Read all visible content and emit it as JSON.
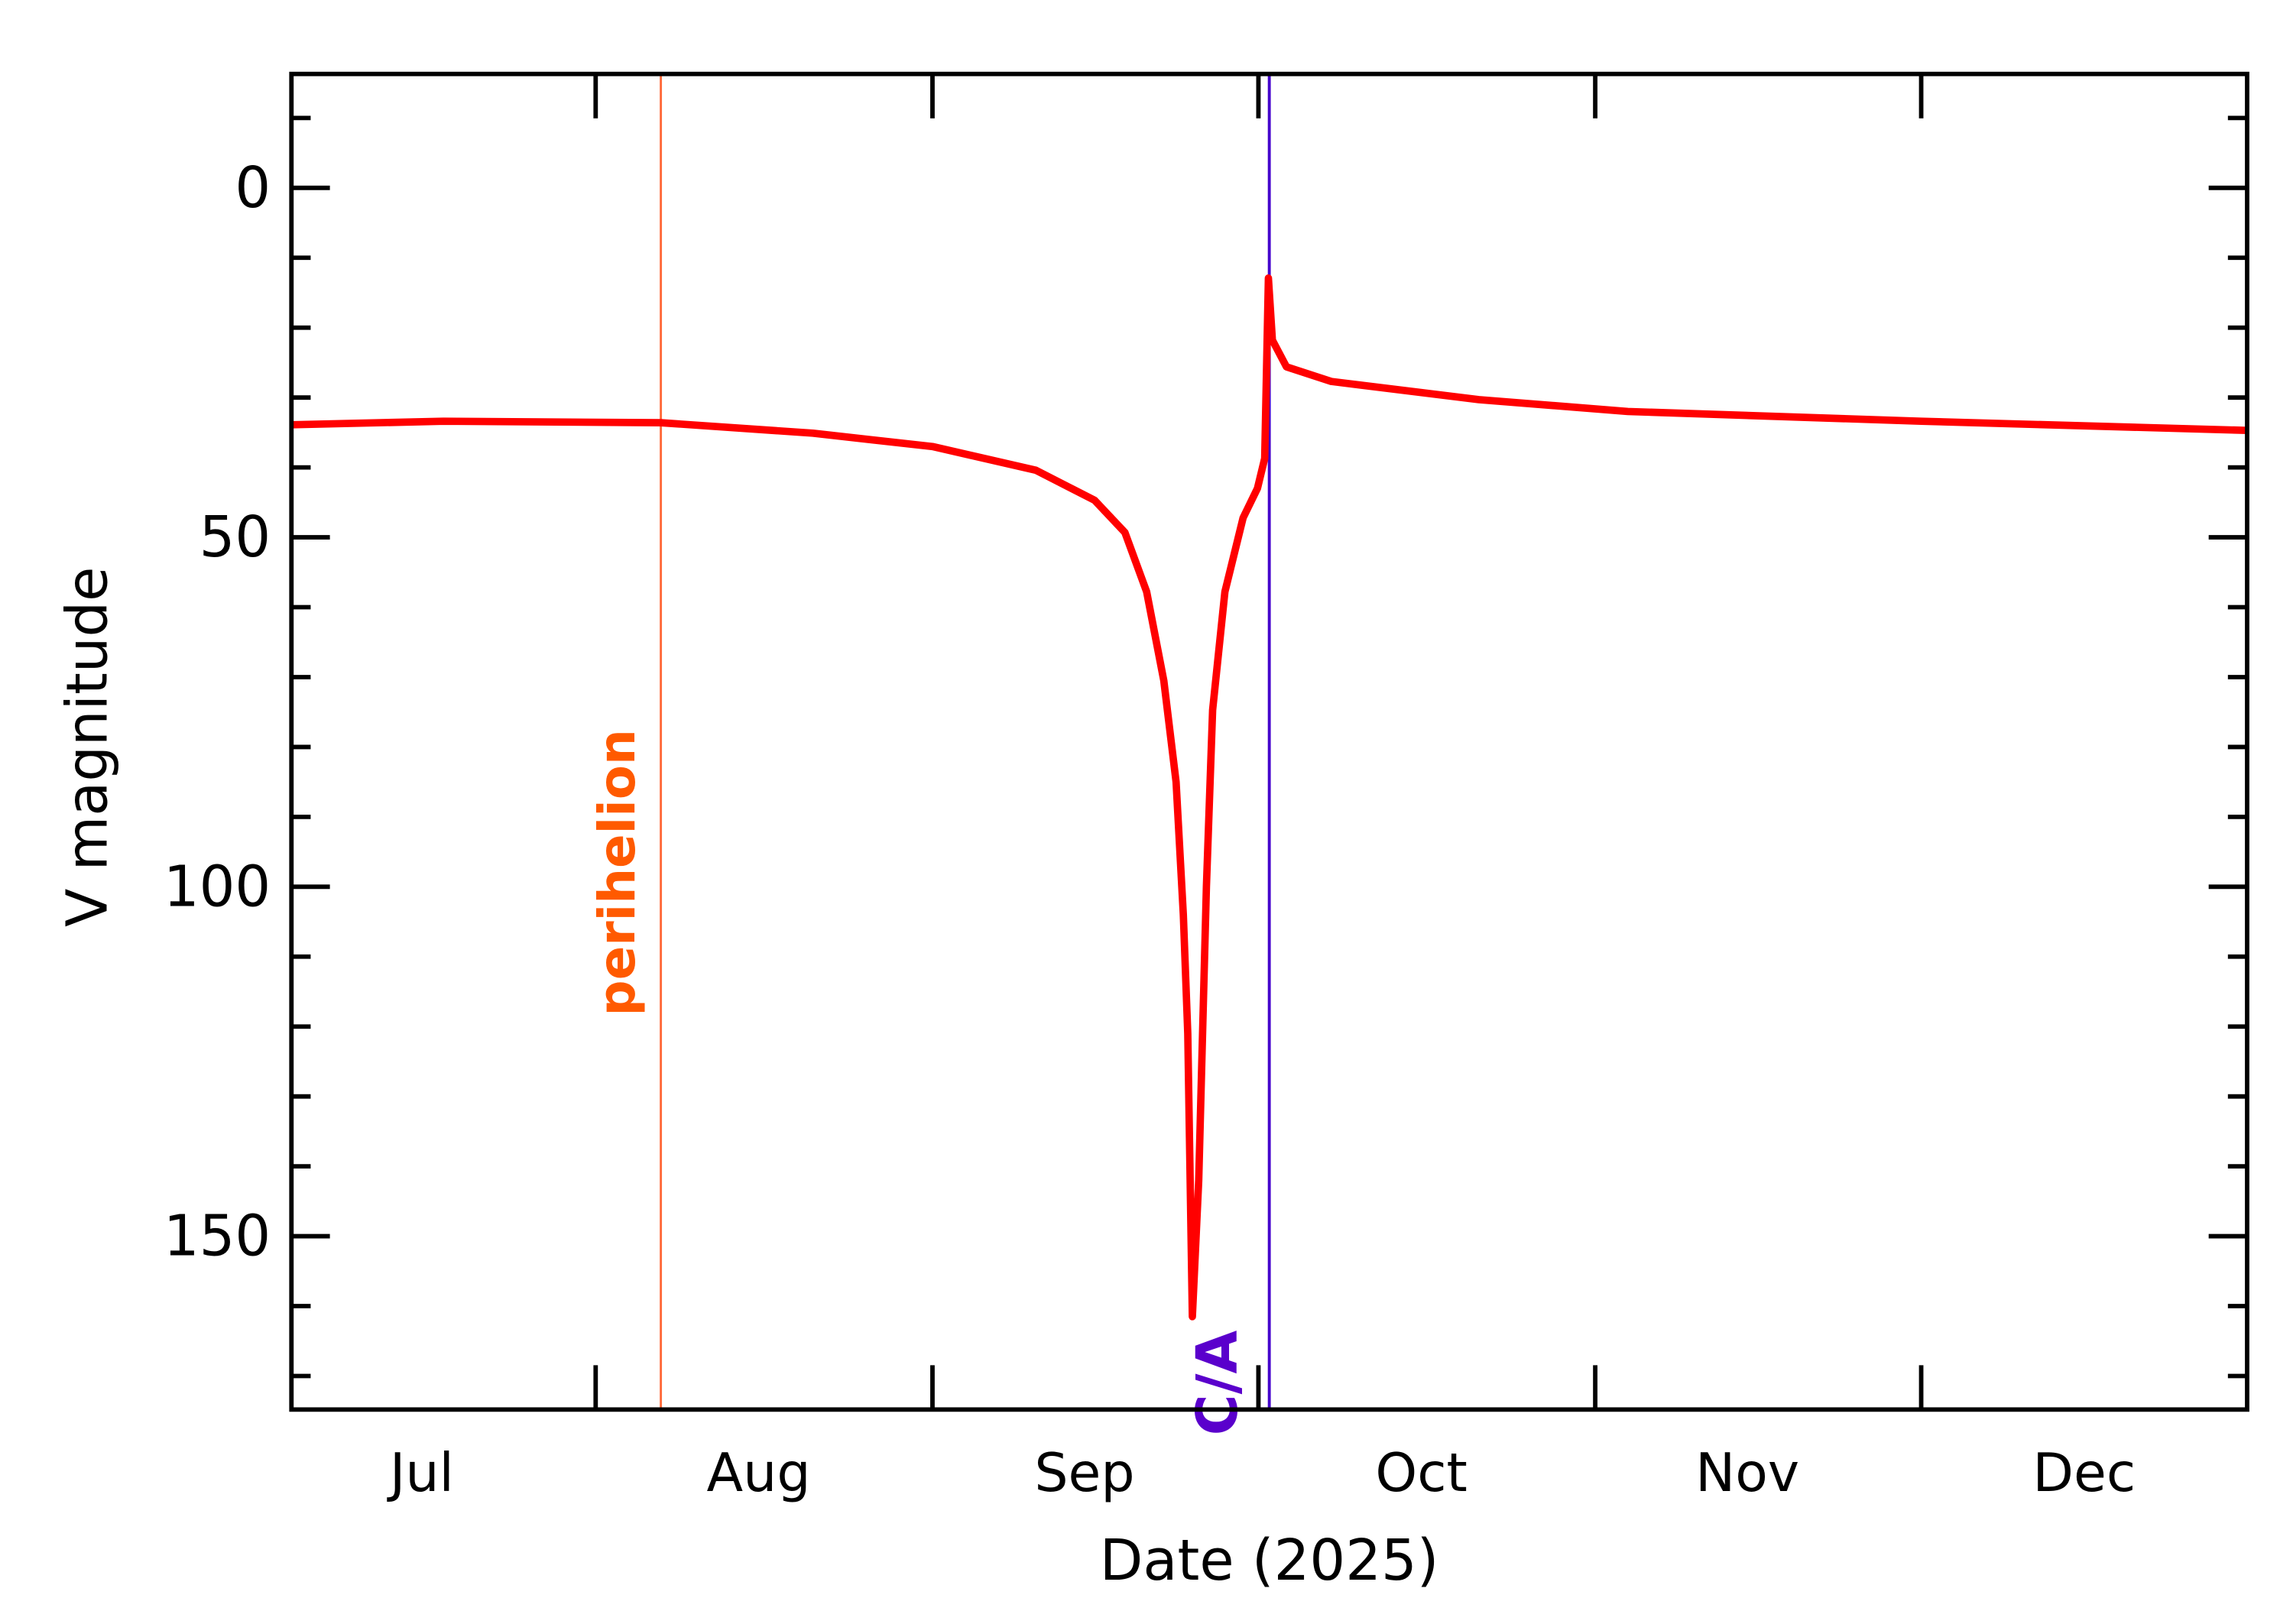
{
  "chart_data": {
    "type": "line",
    "title": "",
    "xlabel": "Date (2025)",
    "ylabel": "V magnitude",
    "xlim": [
      "2025-07-04",
      "2025-12-31"
    ],
    "ylim": [
      -16.3,
      174.8
    ],
    "y_inverted": false,
    "grid": false,
    "x_tick_labels": [
      {
        "label": "Jul",
        "date": "2025-07-16"
      },
      {
        "label": "Aug",
        "date": "2025-08-16"
      },
      {
        "label": "Sep",
        "date": "2025-09-15"
      },
      {
        "label": "Oct",
        "date": "2025-10-16"
      },
      {
        "label": "Nov",
        "date": "2025-11-15"
      },
      {
        "label": "Dec",
        "date": "2025-12-16"
      }
    ],
    "x_major_ticks": [
      "2025-08-01",
      "2025-09-01",
      "2025-10-01",
      "2025-11-01",
      "2025-12-01"
    ],
    "y_ticks": [
      0,
      50,
      100,
      150
    ],
    "y_minor_step": 10,
    "series": [
      {
        "color": "#ff0000",
        "points": [
          [
            "2025-07-04T00:00",
            33.9
          ],
          [
            "2025-07-18T00:00",
            33.4
          ],
          [
            "2025-08-07T00:00",
            33.6
          ],
          [
            "2025-08-21T00:00",
            35.1
          ],
          [
            "2025-09-01T00:00",
            37.0
          ],
          [
            "2025-09-10T12:00",
            40.4
          ],
          [
            "2025-09-15T22:00",
            44.7
          ],
          [
            "2025-09-18T17:00",
            49.3
          ],
          [
            "2025-09-20T17:00",
            57.8
          ],
          [
            "2025-09-22T07:00",
            70.5
          ],
          [
            "2025-09-23T10:00",
            85.0
          ],
          [
            "2025-09-24T02:00",
            104.0
          ],
          [
            "2025-09-24T12:00",
            121.0
          ],
          [
            "2025-09-24T22:00",
            161.5
          ],
          [
            "2025-09-25T12:00",
            142.0
          ],
          [
            "2025-09-26T05:00",
            100.0
          ],
          [
            "2025-09-26T19:00",
            74.7
          ],
          [
            "2025-09-27T22:00",
            57.8
          ],
          [
            "2025-09-29T14:00",
            47.2
          ],
          [
            "2025-09-30T22:00",
            43.0
          ],
          [
            "2025-10-01T14:00",
            38.7
          ],
          [
            "2025-10-01T22:00",
            12.9
          ],
          [
            "2025-10-02T07:00",
            21.8
          ],
          [
            "2025-10-03T14:00",
            25.6
          ],
          [
            "2025-10-07T17:00",
            27.7
          ],
          [
            "2025-10-21T07:00",
            30.3
          ],
          [
            "2025-11-04T00:00",
            32.0
          ],
          [
            "2025-12-01T00:00",
            33.4
          ],
          [
            "2025-12-31T00:00",
            34.7
          ]
        ]
      }
    ],
    "annotations": [
      {
        "label": "perihelion",
        "date": "2025-08-07",
        "color": "#ff5a00",
        "line_color": "#ff6a3a"
      },
      {
        "label": "C/A",
        "date": "2025-10-02",
        "color": "#5a00cc",
        "line_color": "#4400cc"
      }
    ]
  }
}
